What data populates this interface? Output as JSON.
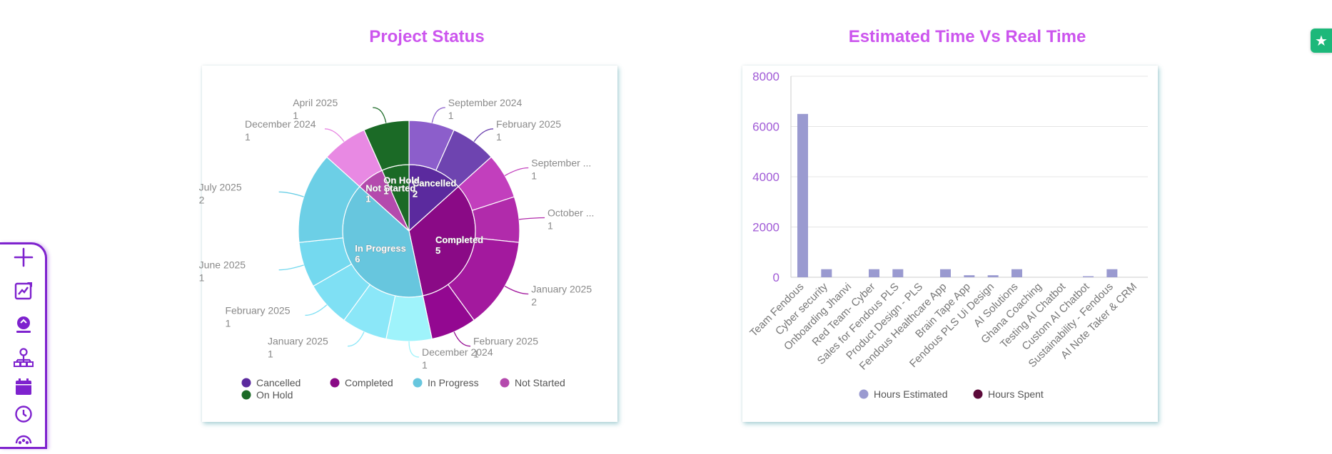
{
  "panels": {
    "left_title": "Project Status",
    "right_title": "Estimated Time Vs Real Time"
  },
  "colors": {
    "title": "#cc55ee",
    "sidebar_border": "#7e22ce",
    "sidebar_icon": "#7e22ce",
    "fab": "#1db87a"
  },
  "sidebar": {
    "items": [
      {
        "icon": "plus-icon"
      },
      {
        "icon": "chart-edit-icon"
      },
      {
        "icon": "dashboard-icon"
      },
      {
        "icon": "org-chart-icon"
      },
      {
        "icon": "calendar-icon"
      },
      {
        "icon": "clock-icon"
      },
      {
        "icon": "team-icon"
      }
    ]
  },
  "fab": {
    "icon": "star-icon",
    "label": "★"
  },
  "chart_data": [
    {
      "type": "pie",
      "subtype": "sunburst",
      "title": "Project Status",
      "inner": [
        {
          "label": "Cancelled",
          "value": 2,
          "color": "#5b2a9e"
        },
        {
          "label": "Completed",
          "value": 5,
          "color": "#8a0a86"
        },
        {
          "label": "In Progress",
          "value": 6,
          "color": "#67c6de"
        },
        {
          "label": "Not Started",
          "value": 1,
          "color": "#b44aad"
        },
        {
          "label": "On Hold",
          "value": 1,
          "color": "#1b6a26"
        }
      ],
      "outer": [
        {
          "label": "September 2024",
          "value": 1,
          "parent": "Cancelled",
          "color": "#8c5ecb"
        },
        {
          "label": "February 2025",
          "value": 1,
          "parent": "Cancelled",
          "color": "#6e44b0"
        },
        {
          "label": "September ...",
          "value": 1,
          "parent": "Completed",
          "color": "#c23fbd"
        },
        {
          "label": "October ...",
          "value": 1,
          "parent": "Completed",
          "color": "#b12bab"
        },
        {
          "label": "January 2025",
          "value": 2,
          "parent": "Completed",
          "color": "#a3199e"
        },
        {
          "label": "February 2025",
          "value": 1,
          "parent": "Completed",
          "color": "#930891"
        },
        {
          "label": "December 2024",
          "value": 1,
          "parent": "In Progress",
          "color": "#9ff3fb"
        },
        {
          "label": "January 2025",
          "value": 1,
          "parent": "In Progress",
          "color": "#8be7f8"
        },
        {
          "label": "February 2025",
          "value": 1,
          "parent": "In Progress",
          "color": "#7fe0f4"
        },
        {
          "label": "June 2025",
          "value": 1,
          "parent": "In Progress",
          "color": "#74d9ef"
        },
        {
          "label": "July 2025",
          "value": 2,
          "parent": "In Progress",
          "color": "#6ccfe6"
        },
        {
          "label": "December 2024",
          "value": 1,
          "parent": "Not Started",
          "color": "#e889e3"
        },
        {
          "label": "April 2025",
          "value": 1,
          "parent": "On Hold",
          "color": "#1b6a26"
        }
      ],
      "legend": [
        "Cancelled",
        "Completed",
        "In Progress",
        "Not Started",
        "On Hold"
      ],
      "legend_position": "bottom"
    },
    {
      "type": "bar",
      "title": "Estimated Time Vs Real Time",
      "categories": [
        "Team Fendous",
        "Cyber security",
        "Onboarding Jhanvi",
        "Red Team- Cyber",
        "Sales for Fendous PLS",
        "Product Design - PLS",
        "Fendous Healthcare App",
        "Brain Tape App",
        "Fendous PLS Ui Design",
        "AI Solutions",
        "Ghana Coaching",
        "Testing AI Chatbot",
        "Custom AI Chatbot",
        "Sustainability - Fendous",
        "AI Note Taker & CRM"
      ],
      "series": [
        {
          "name": "Hours Estimated",
          "color": "#9a9ad0",
          "values": [
            6500,
            320,
            0,
            320,
            320,
            0,
            320,
            80,
            80,
            320,
            0,
            0,
            40,
            320,
            0
          ]
        },
        {
          "name": "Hours Spent",
          "color": "#5c0a3a",
          "values": [
            0,
            0,
            0,
            0,
            0,
            0,
            0,
            0,
            0,
            0,
            0,
            0,
            0,
            0,
            0
          ]
        }
      ],
      "ylim": [
        0,
        8000
      ],
      "yticks": [
        "0",
        "2000",
        "4000",
        "6000",
        "8000"
      ],
      "grid": true,
      "legend_position": "bottom"
    }
  ]
}
